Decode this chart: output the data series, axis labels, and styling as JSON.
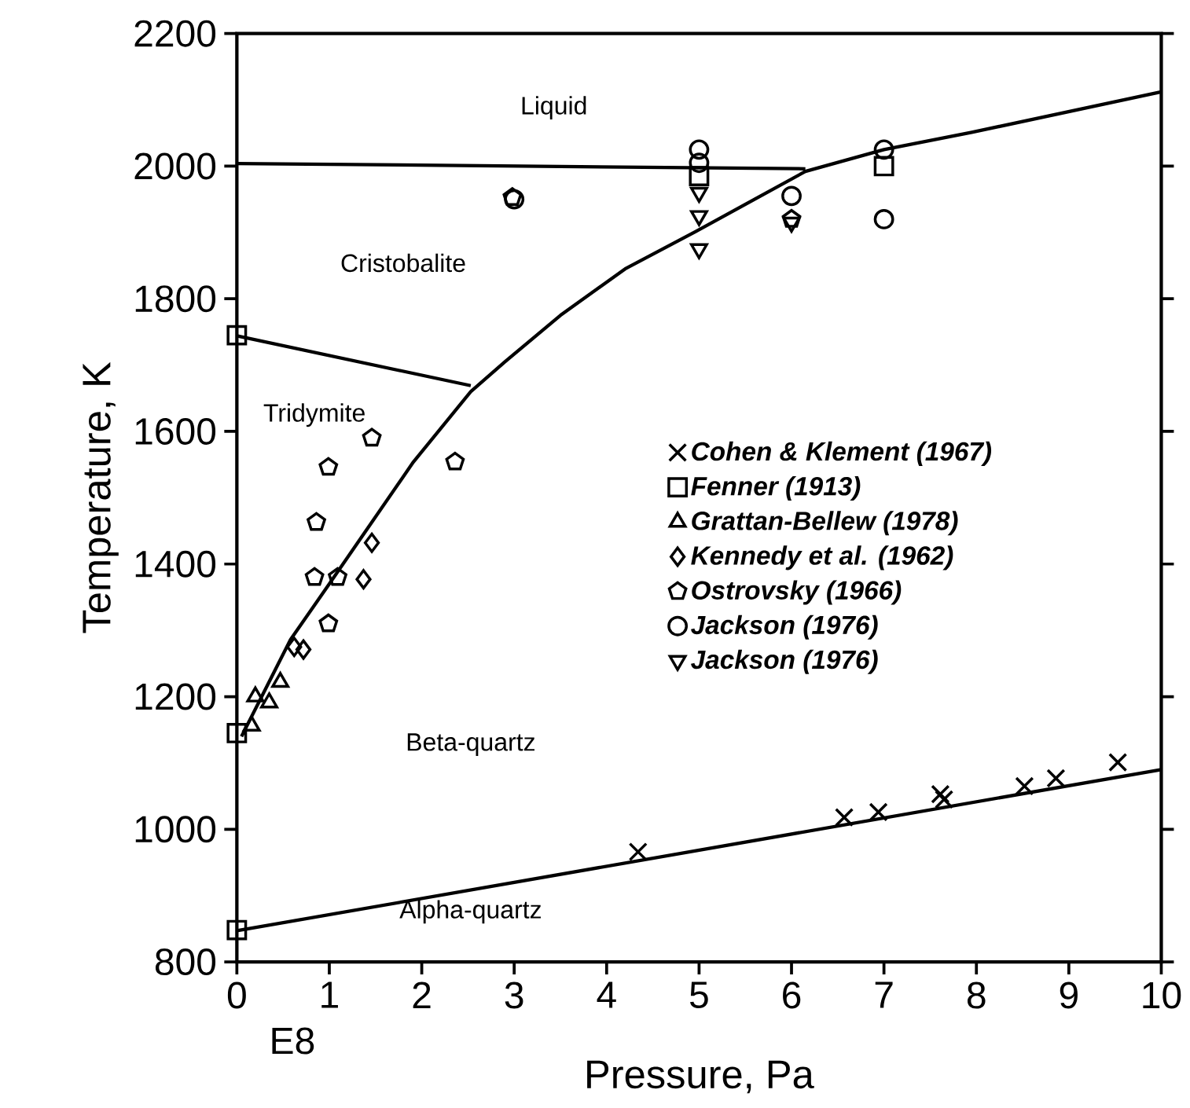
{
  "chart_data": {
    "type": "scatter",
    "xlabel": "Pressure, Pa",
    "ylabel": "Temperature, K",
    "xlim": [
      0,
      10
    ],
    "ylim": [
      800,
      2200
    ],
    "xticks": [
      0,
      1,
      2,
      3,
      4,
      5,
      6,
      7,
      8,
      9,
      10
    ],
    "yticks": [
      800,
      1000,
      1200,
      1400,
      1600,
      1800,
      2000,
      2200
    ],
    "grid": false,
    "legend": "right",
    "annotations": [
      "E8",
      "Liquid",
      "Cristobalite",
      "Tridymite",
      "Beta-quartz",
      "Alpha-quartz"
    ],
    "series": [
      {
        "type": "line",
        "color": "#000000",
        "marker": "none",
        "x": [
          0,
          10
        ],
        "values": [
          847,
          1090
        ]
      },
      {
        "type": "line",
        "color": "#000000",
        "marker": "none",
        "x": [
          0,
          2.53
        ],
        "values": [
          1744,
          1669
        ]
      },
      {
        "type": "line",
        "color": "#000000",
        "marker": "none",
        "x": [
          0,
          6.15
        ],
        "values": [
          2004,
          1996
        ]
      },
      {
        "type": "line",
        "color": "#000000",
        "marker": "none",
        "x": [
          0.05,
          0.58,
          1.0,
          1.91,
          2.53,
          2.9,
          3.5,
          4.2,
          4.96,
          5.6,
          6.15,
          7.0,
          7.95,
          10
        ],
        "values": [
          1140,
          1286,
          1370,
          1554,
          1660,
          1705,
          1775,
          1845,
          1901,
          1950,
          1992,
          2025,
          2051,
          2112
        ]
      },
      {
        "name": "Cohen & Klement (1967)",
        "color": "#000000",
        "marker": "cross",
        "x": [
          4.34,
          6.57,
          6.94,
          7.61,
          7.65,
          8.52,
          8.86,
          9.53
        ],
        "values": [
          966,
          1018,
          1026,
          1053,
          1045,
          1065,
          1077,
          1101
        ]
      },
      {
        "name": "Fenner (1913)",
        "color": "#000000",
        "marker": "square",
        "x": [
          0,
          0,
          0,
          5,
          7
        ],
        "values": [
          1745,
          1145,
          848,
          1985,
          2000
        ]
      },
      {
        "name": "Grattan-Bellew (1978)",
        "color": "#000000",
        "marker": "triangle",
        "x": [
          0.16,
          0.35,
          0.47,
          0.2
        ],
        "values": [
          1156,
          1191,
          1222,
          1200
        ]
      },
      {
        "name": "Kennedy et al. (1962)",
        "color": "#000000",
        "marker": "diamond",
        "x": [
          1.46,
          1.37,
          0.72,
          0.62
        ],
        "values": [
          1432,
          1377,
          1271,
          1275
        ]
      },
      {
        "name": "Ostrovsky (1966)",
        "color": "#000000",
        "x": [
          2.36,
          0.86,
          0.99,
          1.46,
          0.99,
          2.98,
          0.84,
          1.09,
          6.0
        ],
        "values": [
          1554,
          1463,
          1310,
          1590,
          1546,
          1953,
          1380,
          1380,
          1920
        ]
      },
      {
        "name": "Jackson (1976)",
        "color": "#000000",
        "marker": "circle",
        "x": [
          5,
          5,
          7,
          6,
          3,
          7
        ],
        "values": [
          2025,
          2005,
          2025,
          1955,
          1950,
          1920
        ]
      },
      {
        "name": "Jackson (1976)",
        "color": "#000000",
        "marker": "triangle-down",
        "x": [
          5,
          5,
          5,
          6
        ],
        "values": [
          1960,
          1925,
          1875,
          1915
        ]
      }
    ]
  }
}
